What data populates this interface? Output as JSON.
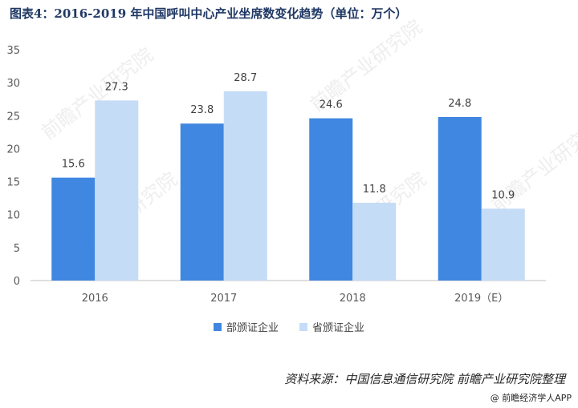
{
  "title": "图表4：2016-2019 年中国呼叫中心产业坐席数变化趋势（单位：万个）",
  "source": "资料来源：中国信息通信研究院 前瞻产业研究院整理",
  "footer": "@ 前瞻经济学人APP",
  "watermark": "前瞻产业研究院",
  "colors": {
    "series1": "#3f87e0",
    "series2": "#c5dcf7",
    "axis": "#bfbfbf",
    "title": "#1f3864"
  },
  "chart_data": {
    "type": "bar",
    "title": "图表4：2016-2019 年中国呼叫中心产业坐席数变化趋势（单位：万个）",
    "categories": [
      "2016",
      "2017",
      "2018",
      "2019（E）"
    ],
    "series": [
      {
        "name": "部颁证企业",
        "values": [
          15.6,
          23.8,
          24.6,
          24.8
        ]
      },
      {
        "name": "省颁证企业",
        "values": [
          27.3,
          28.7,
          11.8,
          10.9
        ]
      }
    ],
    "ylim": [
      0,
      35
    ],
    "yticks": [
      0,
      5,
      10,
      15,
      20,
      25,
      30,
      35
    ],
    "grid": false,
    "legend": "bottom"
  }
}
